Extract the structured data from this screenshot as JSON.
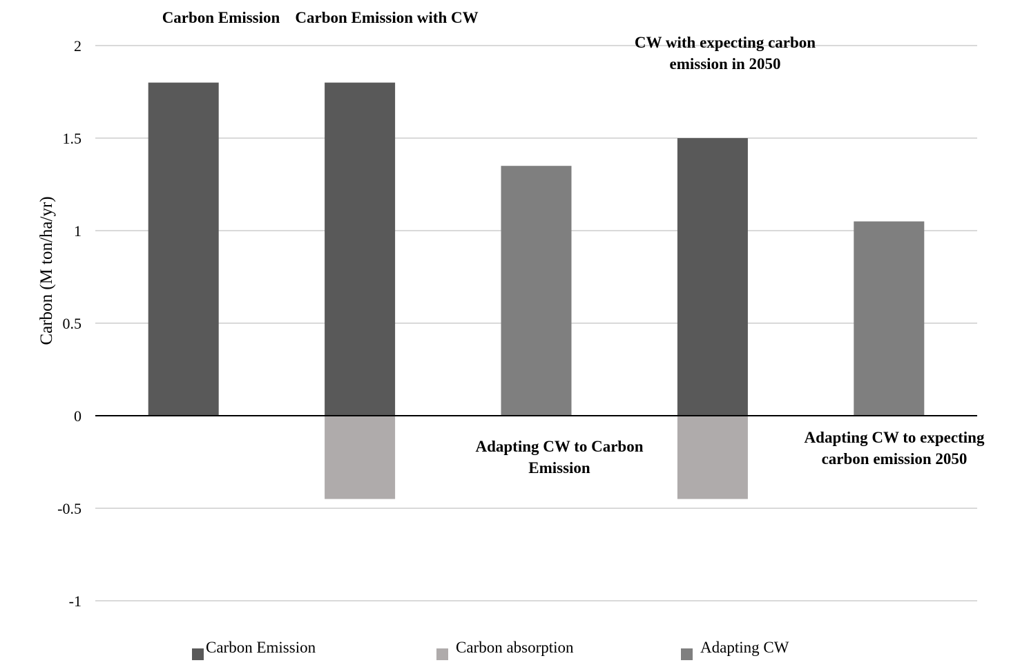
{
  "chart_data": {
    "type": "bar",
    "stacked": true,
    "categories": [
      "Carbon Emission",
      "Carbon Emission with CW",
      "Adapting CW to Carbon Emission",
      "CW with expecting carbon emission in 2050",
      "Adapting CW to expecting carbon emission 2050"
    ],
    "category_labels": [
      [
        "Carbon Emission"
      ],
      [
        "Carbon Emission with CW"
      ],
      [
        "Adapting CW to Carbon",
        "Emission"
      ],
      [
        "CW with expecting carbon",
        "emission in 2050"
      ],
      [
        "Adapting CW to expecting",
        "carbon emission 2050"
      ]
    ],
    "series": [
      {
        "name": "Carbon Emission",
        "color": "#595959",
        "values": [
          1.8,
          1.8,
          0,
          1.5,
          0
        ]
      },
      {
        "name": "Carbon absorption",
        "color": "#afabab",
        "values": [
          0,
          -0.45,
          0,
          -0.45,
          0
        ]
      },
      {
        "name": "Adapting CW",
        "color": "#7f7f7f",
        "values": [
          0,
          0,
          1.35,
          0,
          1.05
        ]
      }
    ],
    "ylabel": "Carbon (M ton/ha/yr)",
    "ylim": [
      -1,
      2
    ],
    "yticks": [
      2,
      1.5,
      1,
      0.5,
      0,
      -0.5,
      -1
    ],
    "ytick_labels": [
      "2",
      "1.5",
      "1",
      "0.5",
      "0",
      "-0.5",
      "-1"
    ],
    "grid": true,
    "legend_position": "bottom"
  }
}
